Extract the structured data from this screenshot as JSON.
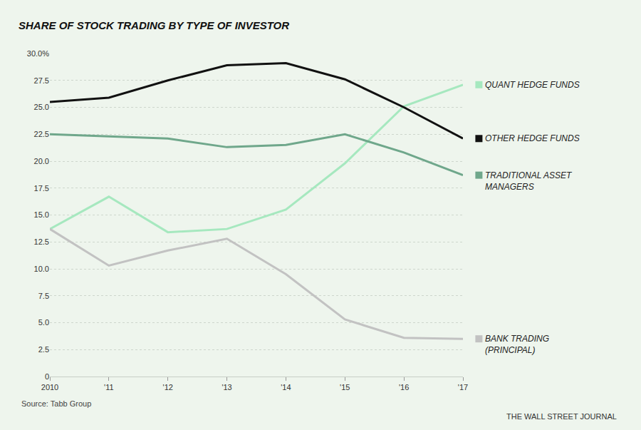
{
  "chart_data": {
    "type": "line",
    "title": "SHARE OF STOCK TRADING BY TYPE OF INVESTOR",
    "source": "Source: Tabb Group",
    "credit": "THE WALL STREET JOURNAL",
    "categories": [
      "2010",
      "'11",
      "'12",
      "'13",
      "'14",
      "'15",
      "'16",
      "'17"
    ],
    "series": [
      {
        "name": "QUANT HEDGE FUNDS",
        "color": "#a6e8bf",
        "values": [
          13.7,
          16.7,
          13.4,
          13.7,
          15.5,
          19.8,
          25.1,
          27.1
        ]
      },
      {
        "name": "OTHER HEDGE FUNDS",
        "color": "#111111",
        "values": [
          25.5,
          25.9,
          27.5,
          28.9,
          29.1,
          27.6,
          25.0,
          22.1
        ]
      },
      {
        "name": "TRADITIONAL ASSET MANAGERS",
        "color": "#6fa78b",
        "values": [
          22.5,
          22.3,
          22.1,
          21.3,
          21.5,
          22.5,
          20.8,
          18.7
        ]
      },
      {
        "name": "BANK TRADING (PRINCIPAL)",
        "color": "#c2c2c2",
        "values": [
          13.7,
          10.3,
          11.7,
          12.8,
          9.5,
          5.3,
          3.6,
          3.5
        ]
      }
    ],
    "ylim": [
      0,
      30
    ],
    "yticks": [
      0,
      2.5,
      {
        "value": 5,
        "label": "5.0"
      },
      7.5,
      {
        "value": 10,
        "label": "10.0"
      },
      12.5,
      {
        "value": 15,
        "label": "15.0"
      },
      17.5,
      {
        "value": 20,
        "label": "20.0"
      },
      22.5,
      {
        "value": 25,
        "label": "25.0"
      },
      27.5,
      {
        "value": 30,
        "label": "30.0%"
      }
    ],
    "grid": true,
    "legend": "right"
  }
}
